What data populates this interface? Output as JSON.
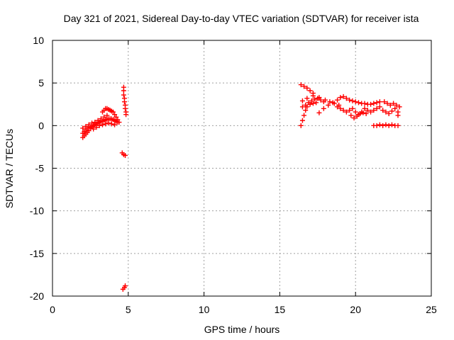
{
  "chart_data": {
    "type": "scatter",
    "title": "Day 321 of 2021, Sidereal Day-to-day VTEC variation (SDTVAR) for receiver ista",
    "xlabel": "GPS time / hours",
    "ylabel": "SDTVAR / TECUs",
    "xlim": [
      0,
      25
    ],
    "ylim": [
      -20,
      10
    ],
    "xticks": [
      "0",
      "5",
      "10",
      "15",
      "20",
      "25"
    ],
    "yticks": [
      "10",
      "5",
      "0",
      "-5",
      "-10",
      "-15",
      "-20"
    ],
    "grid": true,
    "marker": "plus",
    "series": [
      {
        "name": "cluster-early-morning",
        "color": "#ff0000",
        "points": [
          [
            2.0,
            -1.4
          ],
          [
            2.1,
            -1.2
          ],
          [
            2.2,
            -1.0
          ],
          [
            2.3,
            -0.8
          ],
          [
            2.4,
            -0.6
          ],
          [
            2.5,
            -0.3
          ],
          [
            2.6,
            -0.1
          ],
          [
            2.7,
            0.0
          ],
          [
            2.8,
            0.1
          ],
          [
            2.9,
            0.2
          ],
          [
            3.0,
            0.3
          ],
          [
            3.1,
            0.4
          ],
          [
            3.2,
            0.5
          ],
          [
            3.3,
            0.5
          ],
          [
            3.4,
            0.6
          ],
          [
            3.5,
            0.7
          ],
          [
            3.6,
            0.7
          ],
          [
            3.7,
            0.8
          ],
          [
            3.8,
            0.8
          ],
          [
            3.9,
            0.8
          ],
          [
            4.0,
            0.7
          ],
          [
            4.1,
            0.6
          ],
          [
            4.2,
            0.5
          ],
          [
            4.3,
            0.4
          ],
          [
            2.0,
            -0.9
          ],
          [
            2.1,
            -0.7
          ],
          [
            2.2,
            -0.5
          ],
          [
            2.3,
            -0.3
          ],
          [
            2.5,
            -0.2
          ],
          [
            2.7,
            -0.4
          ],
          [
            2.9,
            -0.2
          ],
          [
            3.1,
            0.0
          ],
          [
            3.3,
            0.1
          ],
          [
            3.5,
            0.2
          ],
          [
            3.7,
            0.3
          ],
          [
            3.9,
            0.2
          ],
          [
            4.1,
            0.1
          ],
          [
            2.0,
            -0.3
          ],
          [
            2.2,
            -0.1
          ],
          [
            2.4,
            0.1
          ],
          [
            2.6,
            0.3
          ],
          [
            2.8,
            0.4
          ],
          [
            3.0,
            0.6
          ],
          [
            3.2,
            0.8
          ],
          [
            3.4,
            1.0
          ],
          [
            3.6,
            1.2
          ],
          [
            3.3,
            1.6
          ],
          [
            3.4,
            1.8
          ],
          [
            3.5,
            2.0
          ],
          [
            3.6,
            2.0
          ],
          [
            3.7,
            1.9
          ],
          [
            3.8,
            1.8
          ],
          [
            3.9,
            1.7
          ],
          [
            4.0,
            1.6
          ],
          [
            4.1,
            1.3
          ],
          [
            4.2,
            1.0
          ],
          [
            4.3,
            0.7
          ],
          [
            4.4,
            0.4
          ],
          [
            4.7,
            4.5
          ],
          [
            4.7,
            4.1
          ],
          [
            4.7,
            3.6
          ],
          [
            4.75,
            3.2
          ],
          [
            4.75,
            2.8
          ],
          [
            4.8,
            2.4
          ],
          [
            4.8,
            2.0
          ],
          [
            4.85,
            1.6
          ],
          [
            4.85,
            1.3
          ],
          [
            4.6,
            -3.2
          ],
          [
            4.7,
            -3.4
          ],
          [
            4.8,
            -3.5
          ],
          [
            4.65,
            -19.2
          ],
          [
            4.75,
            -19.0
          ],
          [
            4.8,
            -18.8
          ]
        ]
      },
      {
        "name": "cluster-afternoon",
        "color": "#ff0000",
        "points": [
          [
            16.4,
            4.8
          ],
          [
            16.6,
            4.6
          ],
          [
            16.8,
            4.4
          ],
          [
            17.0,
            4.1
          ],
          [
            17.2,
            3.8
          ],
          [
            16.4,
            0.0
          ],
          [
            16.5,
            0.6
          ],
          [
            16.6,
            1.2
          ],
          [
            16.7,
            1.8
          ],
          [
            16.8,
            2.2
          ],
          [
            17.0,
            2.5
          ],
          [
            17.2,
            2.6
          ],
          [
            17.4,
            2.7
          ],
          [
            16.5,
            2.2
          ],
          [
            16.7,
            2.4
          ],
          [
            16.9,
            2.7
          ],
          [
            17.1,
            2.9
          ],
          [
            17.3,
            3.1
          ],
          [
            17.5,
            3.2
          ],
          [
            17.7,
            3.0
          ],
          [
            17.9,
            2.8
          ],
          [
            16.5,
            2.9
          ],
          [
            16.8,
            3.2
          ],
          [
            17.2,
            3.5
          ],
          [
            17.6,
            3.3
          ],
          [
            18.0,
            3.0
          ],
          [
            18.3,
            2.8
          ],
          [
            18.6,
            2.6
          ],
          [
            18.9,
            2.4
          ],
          [
            17.6,
            1.5
          ],
          [
            17.9,
            2.0
          ],
          [
            18.2,
            2.4
          ],
          [
            18.5,
            2.7
          ],
          [
            18.8,
            3.0
          ],
          [
            19.0,
            3.3
          ],
          [
            19.2,
            3.4
          ],
          [
            19.4,
            3.2
          ],
          [
            19.6,
            3.0
          ],
          [
            19.8,
            2.9
          ],
          [
            20.0,
            2.8
          ],
          [
            20.2,
            2.7
          ],
          [
            20.4,
            2.6
          ],
          [
            20.6,
            2.6
          ],
          [
            20.8,
            2.5
          ],
          [
            21.0,
            2.5
          ],
          [
            21.2,
            2.6
          ],
          [
            21.4,
            2.7
          ],
          [
            21.6,
            2.8
          ],
          [
            18.8,
            2.2
          ],
          [
            19.0,
            2.0
          ],
          [
            19.2,
            1.8
          ],
          [
            19.4,
            1.6
          ],
          [
            19.6,
            1.8
          ],
          [
            19.8,
            2.0
          ],
          [
            20.0,
            1.6
          ],
          [
            20.2,
            1.3
          ],
          [
            20.4,
            1.6
          ],
          [
            20.6,
            2.0
          ],
          [
            20.8,
            1.8
          ],
          [
            21.0,
            1.6
          ],
          [
            21.2,
            1.8
          ],
          [
            21.4,
            2.0
          ],
          [
            21.6,
            2.2
          ],
          [
            19.7,
            1.2
          ],
          [
            19.9,
            0.9
          ],
          [
            20.1,
            1.1
          ],
          [
            20.3,
            1.4
          ],
          [
            20.5,
            1.5
          ],
          [
            20.7,
            1.4
          ],
          [
            21.8,
            1.8
          ],
          [
            22.0,
            1.6
          ],
          [
            22.2,
            1.4
          ],
          [
            22.4,
            1.7
          ],
          [
            22.6,
            2.0
          ],
          [
            22.8,
            1.6
          ],
          [
            22.8,
            1.2
          ],
          [
            21.9,
            2.8
          ],
          [
            22.1,
            2.6
          ],
          [
            22.3,
            2.4
          ],
          [
            22.5,
            2.6
          ],
          [
            22.7,
            2.4
          ],
          [
            22.9,
            2.2
          ],
          [
            21.2,
            0.0
          ],
          [
            21.4,
            0.0
          ],
          [
            21.6,
            0.1
          ],
          [
            21.8,
            0.0
          ],
          [
            22.0,
            0.1
          ],
          [
            22.2,
            0.0
          ],
          [
            22.4,
            0.1
          ],
          [
            22.6,
            0.0
          ],
          [
            22.8,
            0.0
          ]
        ]
      }
    ]
  }
}
